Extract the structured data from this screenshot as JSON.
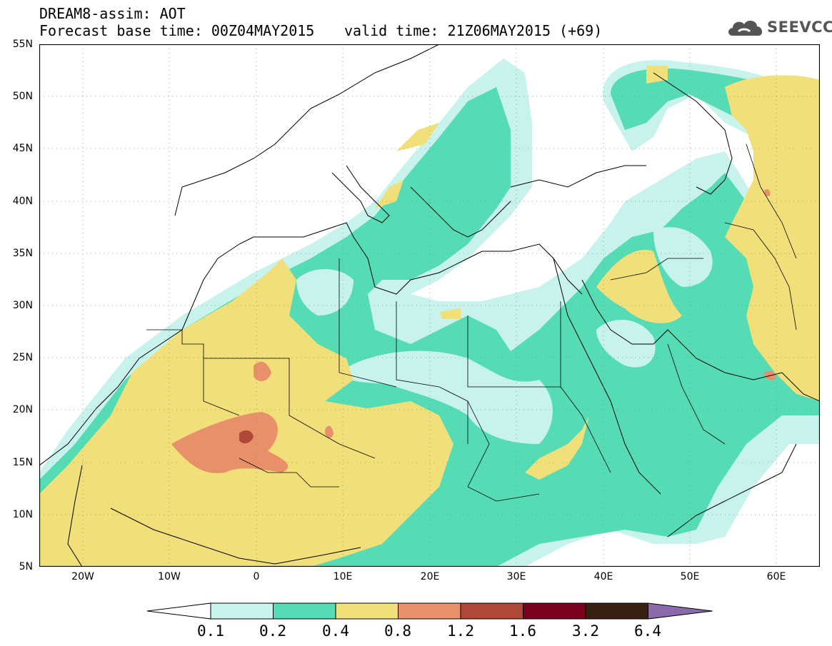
{
  "header": {
    "title_line1": "DREAM8-assim: AOT",
    "title_line2": "Forecast base time: 00Z04MAY2015",
    "valid_time": "valid time: 21Z06MAY2015 (+69)"
  },
  "logo": {
    "text": "SEEVCCC",
    "icon": "cloud-icon"
  },
  "map": {
    "projection": "lat-lon",
    "lon_range": [
      -25,
      65
    ],
    "lat_range": [
      5,
      55
    ],
    "lat_labels": [
      "55N",
      "50N",
      "45N",
      "40N",
      "35N",
      "30N",
      "25N",
      "20N",
      "15N",
      "10N",
      "5N"
    ],
    "lon_labels": [
      "20W",
      "10W",
      "0",
      "10E",
      "20E",
      "30E",
      "40E",
      "50E",
      "60E"
    ],
    "grid": "dotted"
  },
  "colorbar": {
    "labels": [
      "0.1",
      "0.2",
      "0.4",
      "0.8",
      "1.2",
      "1.6",
      "3.2",
      "6.4"
    ],
    "colors": [
      "#ffffff",
      "#c8f2ec",
      "#55dcb4",
      "#f1e07a",
      "#e8906a",
      "#b04838",
      "#7a0020",
      "#3a2010",
      "#8a6aaa"
    ]
  }
}
